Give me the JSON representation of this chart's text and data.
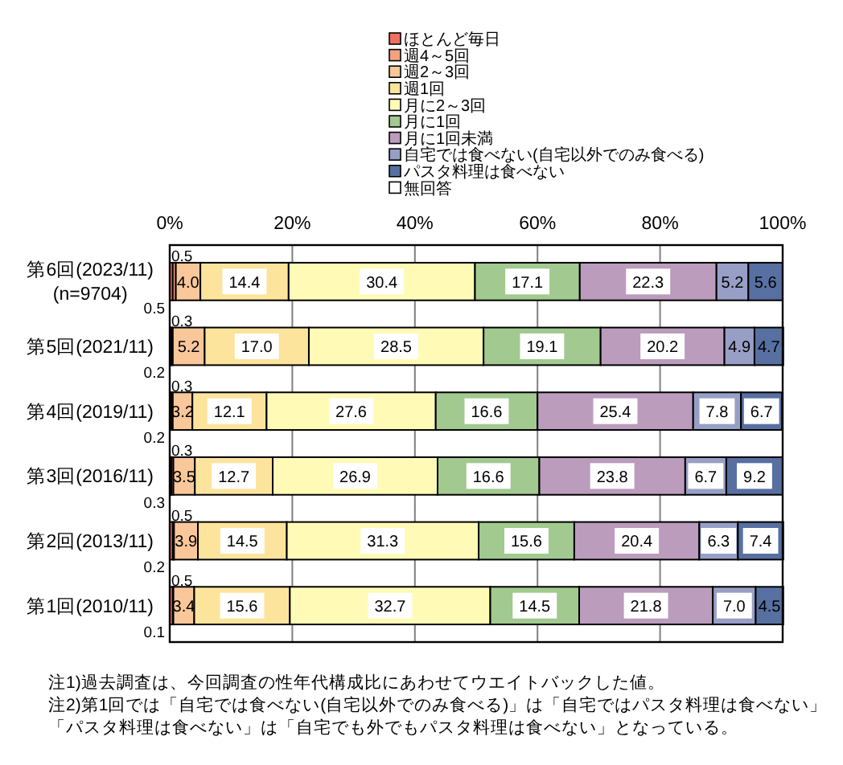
{
  "chart_data": {
    "type": "bar",
    "orientation": "horizontal",
    "stacked": true,
    "categories": [
      "第6回(2023/11)\n(n=9704)",
      "第5回(2021/11)",
      "第4回(2019/11)",
      "第3回(2016/11)",
      "第2回(2013/11)",
      "第1回(2010/11)"
    ],
    "series": [
      {
        "name": "ほとんど毎日",
        "color": "#f07060",
        "values": [
          0.5,
          0.3,
          0.3,
          0.3,
          0.5,
          0.5
        ],
        "value_labels": [
          "0.5",
          "0.3",
          "0.3",
          "0.3",
          "0.5",
          "0.5"
        ]
      },
      {
        "name": "週4～5回",
        "color": "#f4a27e",
        "values": [
          0.5,
          0.2,
          0.2,
          0.3,
          0.2,
          0.1
        ],
        "value_labels": [
          "0.5",
          "0.2",
          "0.2",
          "0.3",
          "0.2",
          "0.1"
        ]
      },
      {
        "name": "週2～3回",
        "color": "#f9c79a",
        "values": [
          4.0,
          5.2,
          3.2,
          3.5,
          3.9,
          3.4
        ],
        "value_labels": [
          "4.0",
          "5.2",
          "3.2",
          "3.5",
          "3.9",
          "3.4"
        ]
      },
      {
        "name": "週1回",
        "color": "#fde49c",
        "values": [
          14.4,
          17.0,
          12.1,
          12.7,
          14.5,
          15.6
        ],
        "value_labels": [
          "14.4",
          "17.0",
          "12.1",
          "12.7",
          "14.5",
          "15.6"
        ]
      },
      {
        "name": "月に2～3回",
        "color": "#fffbb7",
        "values": [
          30.4,
          28.5,
          27.6,
          26.9,
          31.3,
          32.7
        ],
        "value_labels": [
          "30.4",
          "28.5",
          "27.6",
          "26.9",
          "31.3",
          "32.7"
        ]
      },
      {
        "name": "月に1回",
        "color": "#a2c98f",
        "values": [
          17.1,
          19.1,
          16.6,
          16.6,
          15.6,
          14.5
        ],
        "value_labels": [
          "17.1",
          "19.1",
          "16.6",
          "16.6",
          "15.6",
          "14.5"
        ]
      },
      {
        "name": "月に1回未満",
        "color": "#bb9cbd",
        "values": [
          22.3,
          20.2,
          25.4,
          23.8,
          20.4,
          21.8
        ],
        "value_labels": [
          "22.3",
          "20.2",
          "25.4",
          "23.8",
          "20.4",
          "21.8"
        ]
      },
      {
        "name": "自宅では食べない(自宅以外でのみ食べる)",
        "color": "#979fc6",
        "values": [
          5.2,
          4.9,
          7.8,
          6.7,
          6.3,
          7.0
        ],
        "value_labels": [
          "5.2",
          "4.9",
          "7.8",
          "6.7",
          "6.3",
          "7.0"
        ]
      },
      {
        "name": "パスタ料理は食べない",
        "color": "#5770a1",
        "values": [
          5.6,
          4.7,
          6.7,
          9.2,
          7.4,
          4.5
        ],
        "value_labels": [
          "5.6",
          "4.7",
          "6.7",
          "9.2",
          "7.4",
          "4.5"
        ]
      },
      {
        "name": "無回答",
        "color": "#ffffff",
        "values": [
          null,
          null,
          null,
          null,
          null,
          null
        ]
      }
    ],
    "xlim": [
      0,
      100
    ],
    "xticks": [
      {
        "value": 0,
        "label": "0%"
      },
      {
        "value": 20,
        "label": "20%"
      },
      {
        "value": 40,
        "label": "40%"
      },
      {
        "value": 60,
        "label": "60%"
      },
      {
        "value": 80,
        "label": "80%"
      },
      {
        "value": 100,
        "label": "100%"
      }
    ],
    "grid": "x",
    "legend": "top",
    "annotations": [
      "注1)過去調査は、今回調査の性年代構成比にあわせてウエイトバックした値。",
      "注2)第1回では「自宅では食べない(自宅以外でのみ食べる)」は「自宅ではパスタ料理は食べない」",
      "「パスタ料理は食べない」は「自宅でも外でもパスタ料理は食べない」となっている。"
    ]
  }
}
